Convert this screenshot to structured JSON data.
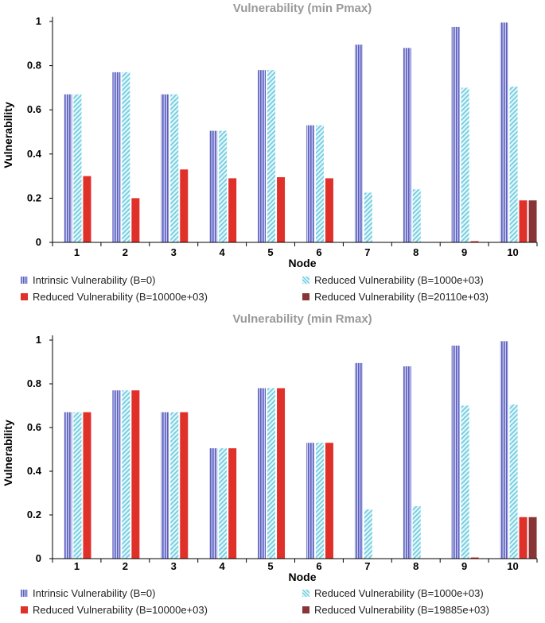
{
  "charts_meta": [
    {
      "legend": [
        "Intrinsic Vulnerability (B=0)",
        "Reduced Vulnerability (B=1000e+03)",
        "Reduced Vulnerability (B=10000e+03)",
        "Reduced Vulnerability (B=20110e+03)"
      ]
    },
    {
      "legend": [
        "Intrinsic Vulnerability (B=0)",
        "Reduced Vulnerability (B=1000e+03)",
        "Reduced Vulnerability (B=10000e+03)",
        "Reduced Vulnerability (B=19885e+03)"
      ]
    }
  ],
  "colors": {
    "intrinsic": "#5b5fbf",
    "reduced_1000": "#6fcde0",
    "reduced_10000": "#e0302a",
    "reduced_high": "#8a3535"
  },
  "chart_data": [
    {
      "type": "bar",
      "title": "Vulnerability (min Pmax)",
      "xlabel": "Node",
      "ylabel": "Vulnerability",
      "ylim": [
        0,
        1
      ],
      "yticks": [
        0,
        0.2,
        0.4,
        0.6,
        0.8,
        1
      ],
      "ytick_labels": [
        "0",
        "0.2",
        "0.4",
        "0.6",
        "0.8",
        "1"
      ],
      "grid": false,
      "legend_position": "bottom",
      "categories": [
        "1",
        "2",
        "3",
        "4",
        "5",
        "6",
        "7",
        "8",
        "9",
        "10"
      ],
      "series": [
        {
          "name": "Intrinsic Vulnerability (B=0)",
          "values": [
            0.67,
            0.77,
            0.67,
            0.505,
            0.78,
            0.53,
            0.895,
            0.88,
            0.975,
            0.995
          ]
        },
        {
          "name": "Reduced Vulnerability (B=1000e+03)",
          "values": [
            0.67,
            0.77,
            0.67,
            0.505,
            0.78,
            0.53,
            0.225,
            0.24,
            0.7,
            0.705
          ]
        },
        {
          "name": "Reduced Vulnerability (B=10000e+03)",
          "values": [
            0.3,
            0.2,
            0.33,
            0.29,
            0.295,
            0.29,
            0,
            0,
            0.005,
            0.19
          ]
        },
        {
          "name": "Reduced Vulnerability (B=20110e+03)",
          "values": [
            0,
            0,
            0,
            0,
            0,
            0,
            0,
            0,
            0,
            0.19
          ]
        }
      ]
    },
    {
      "type": "bar",
      "title": "Vulnerability (min Rmax)",
      "xlabel": "Node",
      "ylabel": "Vulnerability",
      "ylim": [
        0,
        1
      ],
      "yticks": [
        0,
        0.2,
        0.4,
        0.6,
        0.8,
        1
      ],
      "ytick_labels": [
        "0",
        "0.2",
        "0.4",
        "0.6",
        "0.8",
        "1"
      ],
      "grid": false,
      "legend_position": "bottom",
      "categories": [
        "1",
        "2",
        "3",
        "4",
        "5",
        "6",
        "7",
        "8",
        "9",
        "10"
      ],
      "series": [
        {
          "name": "Intrinsic Vulnerability (B=0)",
          "values": [
            0.67,
            0.77,
            0.67,
            0.505,
            0.78,
            0.53,
            0.895,
            0.88,
            0.975,
            0.995
          ]
        },
        {
          "name": "Reduced Vulnerability (B=1000e+03)",
          "values": [
            0.67,
            0.77,
            0.67,
            0.505,
            0.78,
            0.53,
            0.225,
            0.24,
            0.7,
            0.705
          ]
        },
        {
          "name": "Reduced Vulnerability (B=10000e+03)",
          "values": [
            0.67,
            0.77,
            0.67,
            0.505,
            0.78,
            0.53,
            0,
            0,
            0.005,
            0.19
          ]
        },
        {
          "name": "Reduced Vulnerability (B=19885e+03)",
          "values": [
            0,
            0,
            0,
            0,
            0,
            0,
            0,
            0,
            0,
            0.19
          ]
        }
      ]
    }
  ]
}
